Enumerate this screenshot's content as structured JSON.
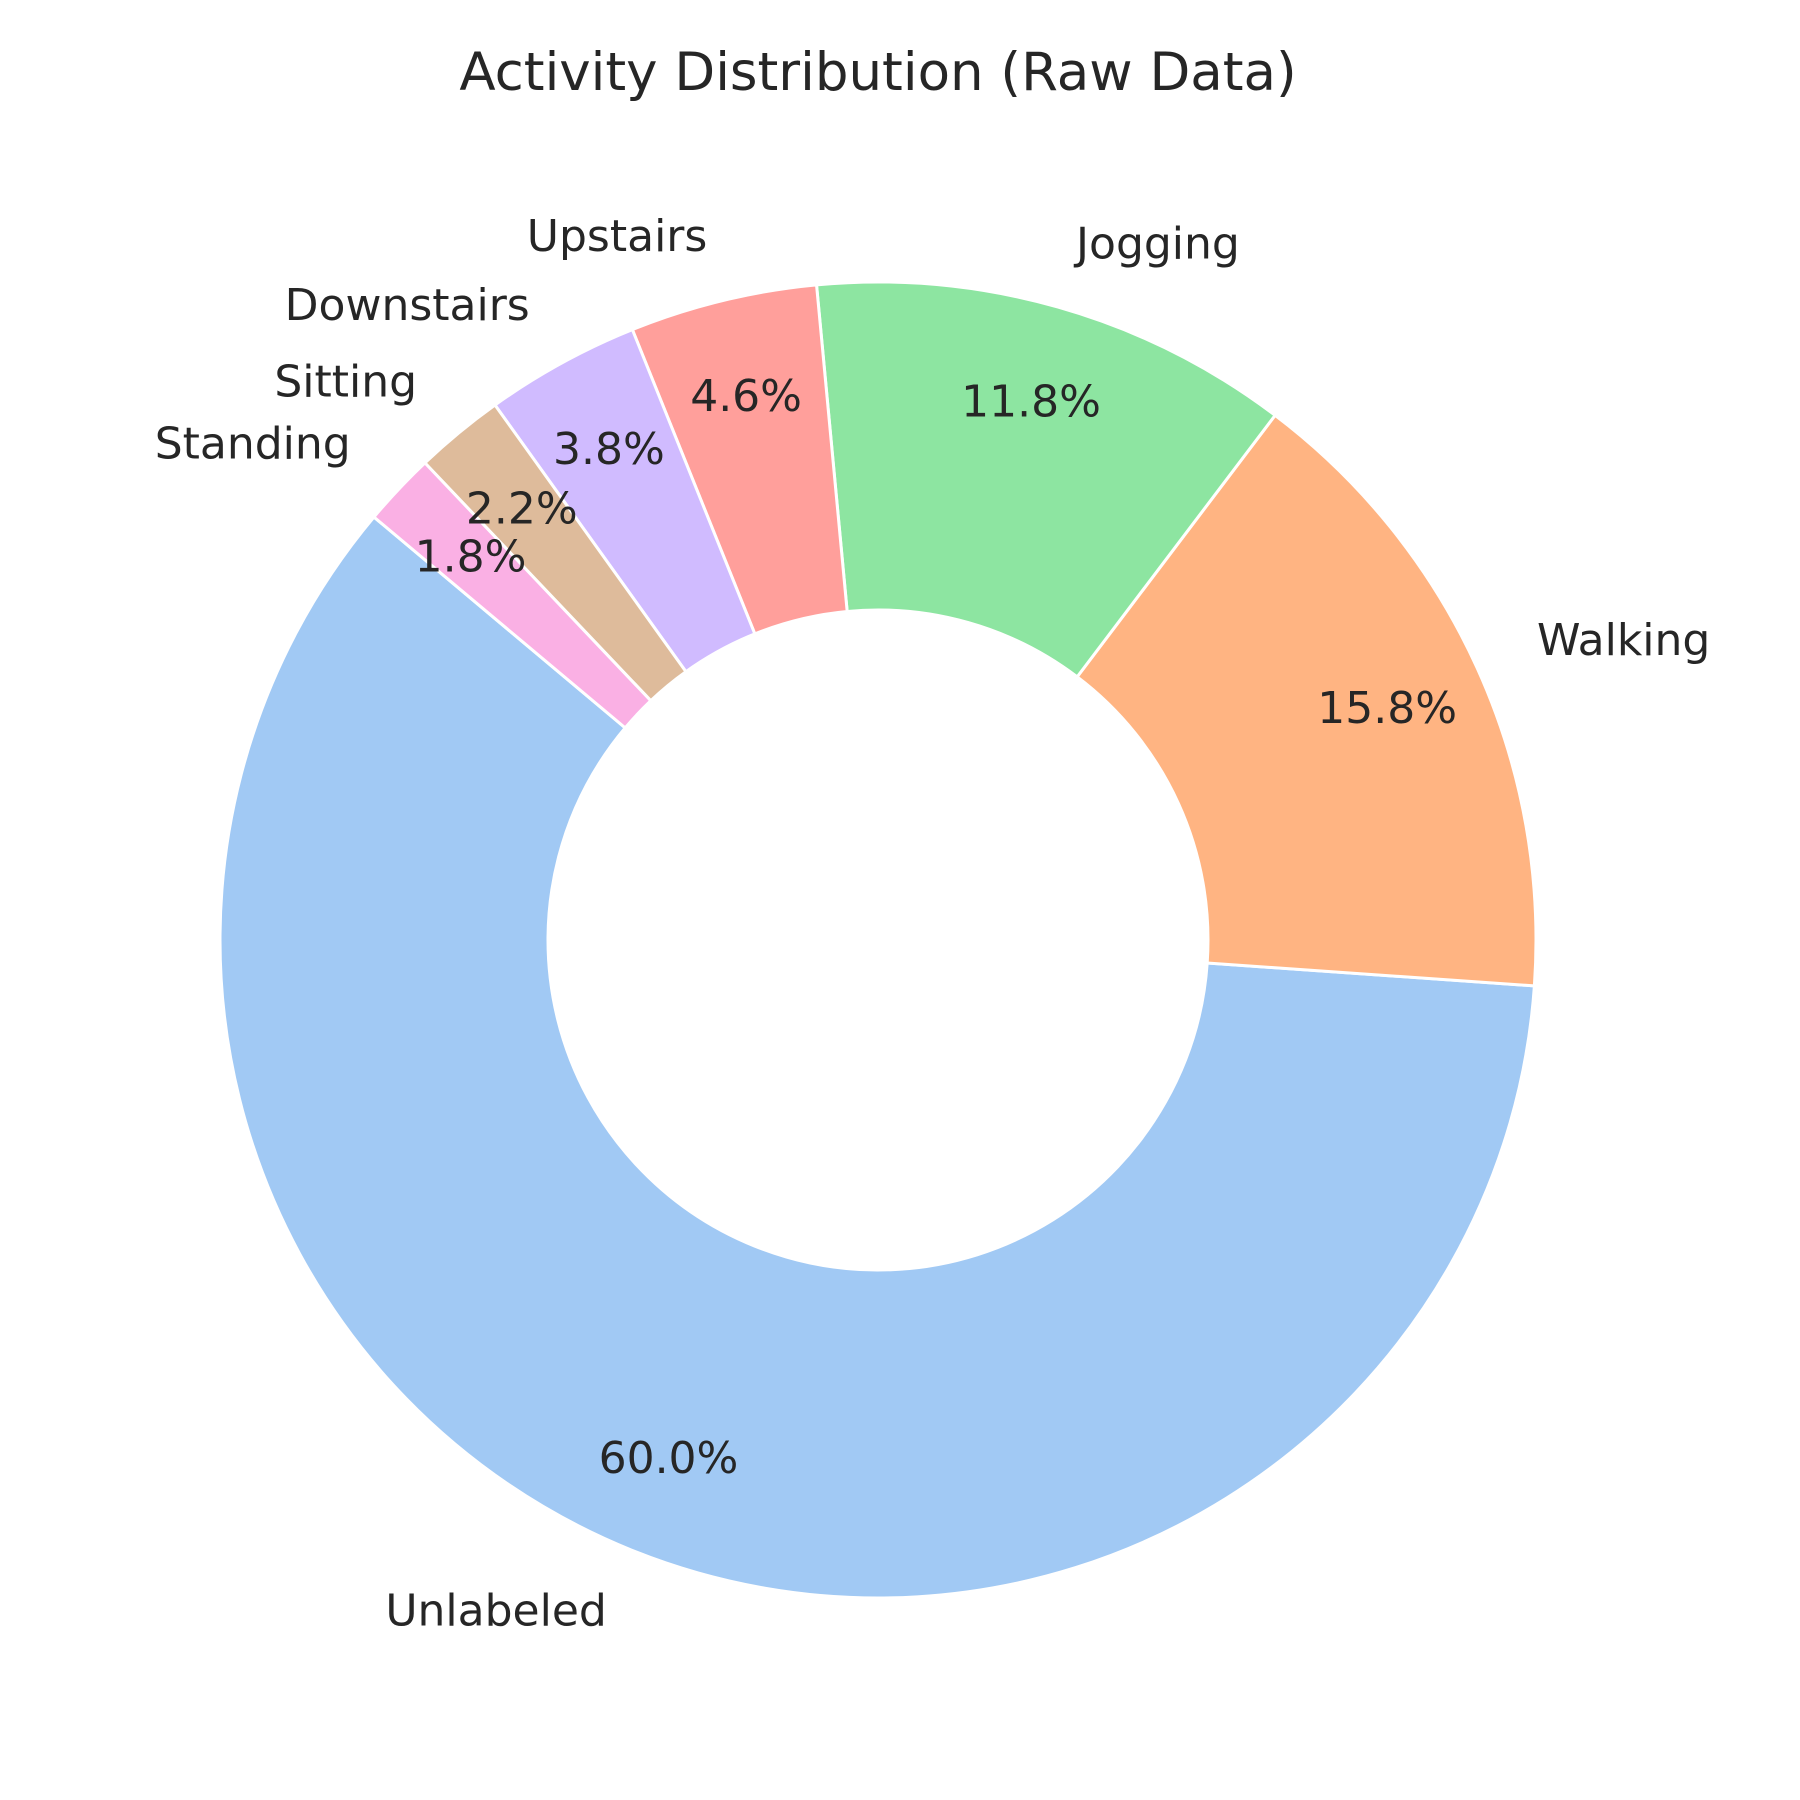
{
  "chart_data": {
    "type": "pie",
    "title": "Activity Distribution (Raw Data)",
    "donut": true,
    "start_angle_deg": 140,
    "direction": "counterclockwise",
    "slice_edge_color": "#ffffff",
    "slices": [
      {
        "label": "Unlabeled",
        "value": 60.0,
        "pct_label": "60.0%",
        "color": "#a1c9f4"
      },
      {
        "label": "Walking",
        "value": 15.8,
        "pct_label": "15.8%",
        "color": "#ffb482"
      },
      {
        "label": "Jogging",
        "value": 11.8,
        "pct_label": "11.8%",
        "color": "#8de5a1"
      },
      {
        "label": "Upstairs",
        "value": 4.6,
        "pct_label": "4.6%",
        "color": "#ff9f9b"
      },
      {
        "label": "Downstairs",
        "value": 3.8,
        "pct_label": "3.8%",
        "color": "#d0bbff"
      },
      {
        "label": "Sitting",
        "value": 2.2,
        "pct_label": "2.2%",
        "color": "#debb9b"
      },
      {
        "label": "Standing",
        "value": 1.8,
        "pct_label": "1.8%",
        "color": "#fab0e4"
      }
    ]
  }
}
